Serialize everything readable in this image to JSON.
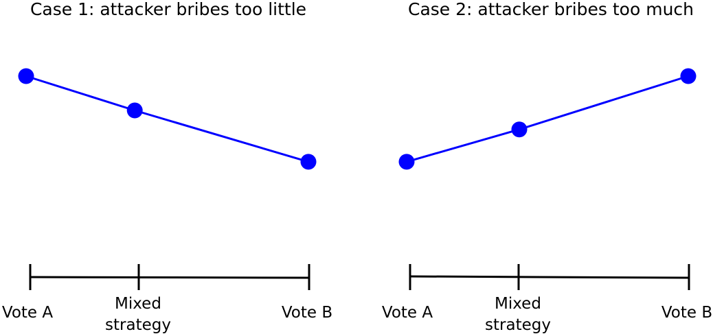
{
  "panels": [
    {
      "title": "Case 1: attacker bribes too little",
      "labels": [
        "Vote A",
        "Mixed",
        "strategy",
        "Vote B"
      ],
      "chart_data": {
        "type": "line",
        "title": "Case 1: attacker bribes too little",
        "categories": [
          "Vote A",
          "Mixed strategy",
          "Vote B"
        ],
        "x": [
          0,
          0.385,
          1
        ],
        "values": [
          0.8,
          0.71,
          0.575
        ],
        "ylim": [
          0,
          1
        ],
        "grid": false,
        "series_color": "#0000ff",
        "axis_color": "#000000"
      }
    },
    {
      "title": "Case 2: attacker bribes too much",
      "labels": [
        "Vote A",
        "Mixed",
        "strategy",
        "Vote B"
      ],
      "chart_data": {
        "type": "line",
        "title": "Case 2: attacker bribes too much",
        "categories": [
          "Vote A",
          "Mixed strategy",
          "Vote B"
        ],
        "x": [
          0,
          0.4,
          1
        ],
        "values": [
          0.575,
          0.66,
          0.8
        ],
        "ylim": [
          0,
          1
        ],
        "grid": false,
        "series_color": "#0000ff",
        "axis_color": "#000000"
      }
    }
  ]
}
